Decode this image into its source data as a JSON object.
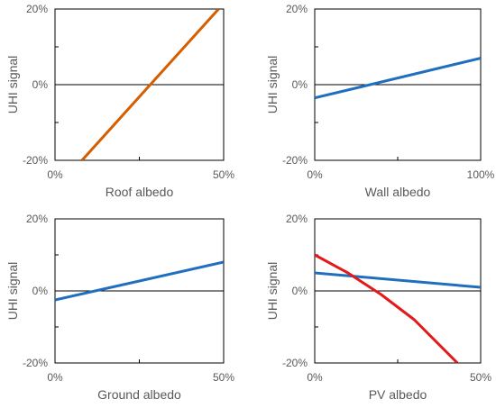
{
  "chart_data": [
    {
      "type": "line",
      "xlabel": "Roof albedo",
      "ylabel": "UHI signal",
      "xlim": [
        0,
        50
      ],
      "ylim": [
        -20,
        20
      ],
      "x_ticks": [
        "0%",
        "50%"
      ],
      "y_ticks": [
        "20%",
        "0%",
        "-20%"
      ],
      "grid": false,
      "series": [
        {
          "color": "#d55e00",
          "x": [
            8,
            48.5
          ],
          "y": [
            -20,
            20
          ]
        }
      ]
    },
    {
      "type": "line",
      "xlabel": "Wall albedo",
      "ylabel": "UHI signal",
      "xlim": [
        0,
        100
      ],
      "ylim": [
        -20,
        20
      ],
      "x_ticks": [
        "0%",
        "100%"
      ],
      "y_ticks": [
        "20%",
        "0%",
        "-20%"
      ],
      "grid": false,
      "series": [
        {
          "color": "#1f6fbf",
          "x": [
            0,
            100
          ],
          "y": [
            -3.5,
            7
          ]
        }
      ]
    },
    {
      "type": "line",
      "xlabel": "Ground albedo",
      "ylabel": "UHI signal",
      "xlim": [
        0,
        50
      ],
      "ylim": [
        -20,
        20
      ],
      "x_ticks": [
        "0%",
        "50%"
      ],
      "y_ticks": [
        "20%",
        "0%",
        "-20%"
      ],
      "grid": false,
      "series": [
        {
          "color": "#1f6fbf",
          "x": [
            0,
            50
          ],
          "y": [
            -2.5,
            8
          ]
        }
      ]
    },
    {
      "type": "line",
      "xlabel": "PV albedo",
      "ylabel": "UHI signal",
      "xlim": [
        0,
        50
      ],
      "ylim": [
        -20,
        20
      ],
      "x_ticks": [
        "0%",
        "50%"
      ],
      "y_ticks": [
        "20%",
        "0%",
        "-20%"
      ],
      "grid": false,
      "series": [
        {
          "color": "#1f6fbf",
          "x": [
            0,
            50
          ],
          "y": [
            5,
            1
          ]
        },
        {
          "color": "#e31a1c",
          "x": [
            0,
            10,
            20,
            30,
            43
          ],
          "y": [
            10,
            5,
            -1,
            -8,
            -20
          ]
        }
      ]
    }
  ]
}
